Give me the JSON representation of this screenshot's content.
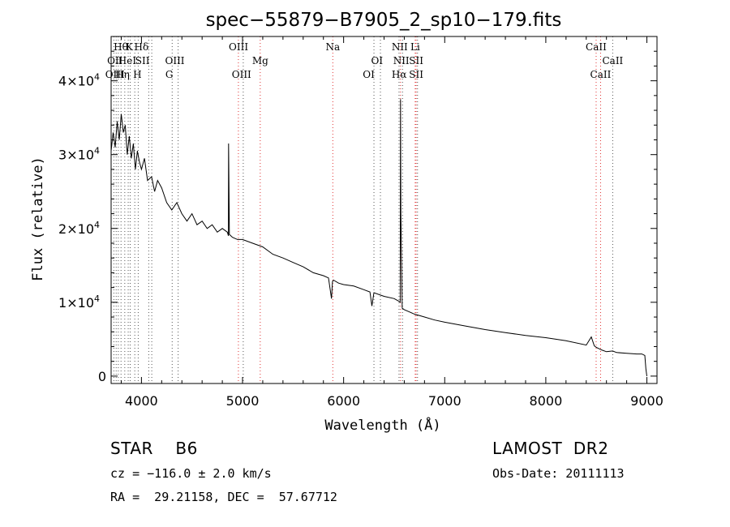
{
  "chart_data": {
    "type": "line",
    "title": "spec−55879−B7905_2_sp10−179.fits",
    "xlabel": "Wavelength (Å)",
    "ylabel": "Flux (relative)",
    "xlim": [
      3700,
      9100
    ],
    "ylim": [
      -1000,
      46000
    ],
    "x_ticks": [
      4000,
      5000,
      6000,
      7000,
      8000,
      9000
    ],
    "y_ticks": [
      {
        "value": 0,
        "base": "0",
        "exp": ""
      },
      {
        "value": 10000,
        "base": "1×10",
        "exp": "4"
      },
      {
        "value": 20000,
        "base": "2×10",
        "exp": "4"
      },
      {
        "value": 30000,
        "base": "3×10",
        "exp": "4"
      },
      {
        "value": 40000,
        "base": "4×10",
        "exp": "4"
      }
    ],
    "grid": false,
    "series": [
      {
        "values_x": [
          3700,
          3720,
          3740,
          3760,
          3780,
          3800,
          3820,
          3840,
          3860,
          3880,
          3900,
          3920,
          3940,
          3960,
          3980,
          4000,
          4030,
          4060,
          4100,
          4130,
          4160,
          4200,
          4250,
          4300,
          4350,
          4400,
          4450,
          4500,
          4550,
          4600,
          4650,
          4700,
          4750,
          4800,
          4850,
          4860,
          4862,
          4870,
          4900,
          4950,
          5000,
          5100,
          5200,
          5300,
          5400,
          5500,
          5600,
          5700,
          5800,
          5850,
          5880,
          5890,
          5900,
          5950,
          6000,
          6100,
          6200,
          6260,
          6280,
          6300,
          6400,
          6500,
          6540,
          6560,
          6563,
          6566,
          6580,
          6600,
          6650,
          6700,
          6800,
          6900,
          7000,
          7200,
          7400,
          7600,
          7800,
          8000,
          8200,
          8400,
          8450,
          8480,
          8500,
          8542,
          8560,
          8600,
          8662,
          8700,
          8800,
          8900,
          8950,
          8980,
          8990,
          9000
        ],
        "values_y": [
          30500,
          33000,
          31000,
          34500,
          32000,
          35500,
          33000,
          34000,
          30000,
          32500,
          29500,
          31500,
          28000,
          30500,
          29000,
          28000,
          29500,
          26500,
          27000,
          25000,
          26500,
          25500,
          23500,
          22500,
          23500,
          22000,
          21000,
          22000,
          20500,
          21000,
          20000,
          20500,
          19500,
          20000,
          19500,
          19000,
          31500,
          19200,
          18800,
          18500,
          18500,
          18000,
          17500,
          16500,
          16000,
          15400,
          14800,
          14000,
          13600,
          13300,
          10500,
          12800,
          13000,
          12600,
          12400,
          12200,
          11700,
          11400,
          9500,
          11300,
          10800,
          10500,
          10200,
          10000,
          37500,
          22000,
          9200,
          9000,
          8700,
          8400,
          8000,
          7600,
          7300,
          6800,
          6300,
          5900,
          5500,
          5200,
          4800,
          4200,
          5300,
          4100,
          3900,
          3600,
          3500,
          3300,
          3400,
          3200,
          3100,
          3000,
          3000,
          2800,
          1000,
          0
        ]
      }
    ],
    "lines": [
      {
        "wl": 3727,
        "style": "dotted",
        "color": "#555555"
      },
      {
        "wl": 3750,
        "style": "dotted",
        "color": "#555555"
      },
      {
        "wl": 3771,
        "style": "dotted",
        "color": "#555555"
      },
      {
        "wl": 3798,
        "style": "dotted",
        "color": "#555555"
      },
      {
        "wl": 3835,
        "style": "dotted",
        "color": "#555555"
      },
      {
        "wl": 3869,
        "style": "dotted",
        "color": "#555555"
      },
      {
        "wl": 3889,
        "style": "dotted",
        "color": "#555555"
      },
      {
        "wl": 3934,
        "style": "dotted",
        "color": "#555555"
      },
      {
        "wl": 3968,
        "style": "dotted",
        "color": "#555555"
      },
      {
        "wl": 4072,
        "style": "dotted",
        "color": "#555555"
      },
      {
        "wl": 4102,
        "style": "dotted",
        "color": "#555555"
      },
      {
        "wl": 4304,
        "style": "dotted",
        "color": "#555555"
      },
      {
        "wl": 4363,
        "style": "dotted",
        "color": "#555555"
      },
      {
        "wl": 4959,
        "style": "dotted",
        "color": "#e03030"
      },
      {
        "wl": 5007,
        "style": "dotted",
        "color": "#555555"
      },
      {
        "wl": 5175,
        "style": "dotted",
        "color": "#e03030"
      },
      {
        "wl": 5893,
        "style": "dotted",
        "color": "#e03030"
      },
      {
        "wl": 6300,
        "style": "dotted",
        "color": "#555555"
      },
      {
        "wl": 6364,
        "style": "dotted",
        "color": "#555555"
      },
      {
        "wl": 6548,
        "style": "dotted",
        "color": "#555555"
      },
      {
        "wl": 6563,
        "style": "dotted",
        "color": "#e03030"
      },
      {
        "wl": 6583,
        "style": "dotted",
        "color": "#555555"
      },
      {
        "wl": 6708,
        "style": "dotted",
        "color": "#e03030"
      },
      {
        "wl": 6717,
        "style": "dotted",
        "color": "#e03030"
      },
      {
        "wl": 6731,
        "style": "dotted",
        "color": "#555555"
      },
      {
        "wl": 8498,
        "style": "dotted",
        "color": "#e03030"
      },
      {
        "wl": 8542,
        "style": "dotted",
        "color": "#e03030"
      },
      {
        "wl": 8662,
        "style": "dotted",
        "color": "#555555"
      }
    ],
    "annotations": [
      {
        "text": "Hθ",
        "wl": 3796,
        "row": 1
      },
      {
        "text": "K",
        "wl": 3880,
        "row": 1
      },
      {
        "text": "Hδ",
        "wl": 4000,
        "row": 1
      },
      {
        "text": "OII",
        "wl": 3738,
        "row": 2
      },
      {
        "text": "HeI",
        "wl": 3860,
        "row": 2
      },
      {
        "text": "SII",
        "wl": 4010,
        "row": 2
      },
      {
        "text": "OIII",
        "wl": 3738,
        "row": 3
      },
      {
        "text": "Hη",
        "wl": 3812,
        "row": 3
      },
      {
        "text": "H",
        "wl": 3960,
        "row": 3
      },
      {
        "text": "OIII",
        "wl": 4330,
        "row": 2
      },
      {
        "text": "G",
        "wl": 4275,
        "row": 3
      },
      {
        "text": "OIII",
        "wl": 4960,
        "row": 1
      },
      {
        "text": "Mg",
        "wl": 5175,
        "row": 2
      },
      {
        "text": "OIII",
        "wl": 4990,
        "row": 3
      },
      {
        "text": "Na",
        "wl": 5893,
        "row": 1
      },
      {
        "text": "OI",
        "wl": 6330,
        "row": 2
      },
      {
        "text": "OI",
        "wl": 6248,
        "row": 3
      },
      {
        "text": "NII",
        "wl": 6555,
        "row": 1
      },
      {
        "text": "Li",
        "wl": 6708,
        "row": 1
      },
      {
        "text": "NII",
        "wl": 6570,
        "row": 2
      },
      {
        "text": "SII",
        "wl": 6718,
        "row": 2
      },
      {
        "text": "Hα",
        "wl": 6550,
        "row": 3
      },
      {
        "text": "SII",
        "wl": 6718,
        "row": 3
      },
      {
        "text": "CaII",
        "wl": 8498,
        "row": 1
      },
      {
        "text": "CaII",
        "wl": 8662,
        "row": 2
      },
      {
        "text": "CaII",
        "wl": 8542,
        "row": 3
      }
    ]
  },
  "info": {
    "object_class": "STAR    B6",
    "survey": "LAMOST  DR2",
    "velocity": "cz = −116.0 ± 2.0 km/s",
    "obs_date": "Obs-Date: 20111113",
    "coords": "RA =  29.21158, DEC =  57.67712"
  }
}
